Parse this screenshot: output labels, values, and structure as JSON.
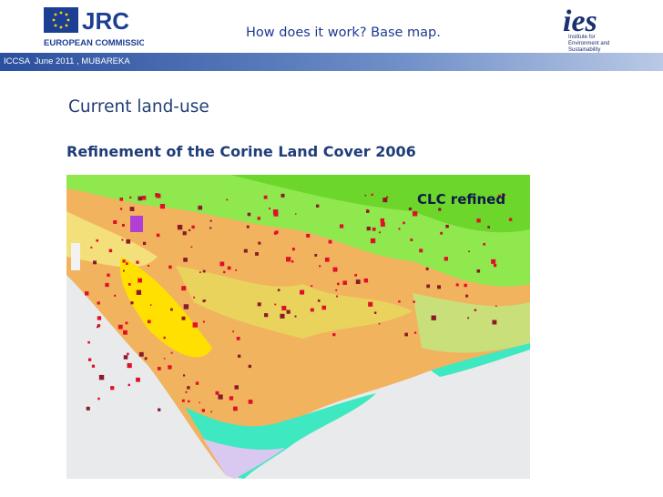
{
  "header": {
    "logo_left": {
      "title": "JRC",
      "subtitle": "EUROPEAN COMMISSION"
    },
    "title": "How does it work? Base map.",
    "logo_right": {
      "title": "ies",
      "subtitle": [
        "Institute for",
        "Environment and",
        "Sustainability"
      ]
    }
  },
  "banner": {
    "text": "ICCSA  June 2011 , MUBAREKA"
  },
  "slide": {
    "heading": "Current land-use",
    "subheading": "Refinement of the Corine Land Cover 2006"
  },
  "map": {
    "label": "CLC refined"
  }
}
